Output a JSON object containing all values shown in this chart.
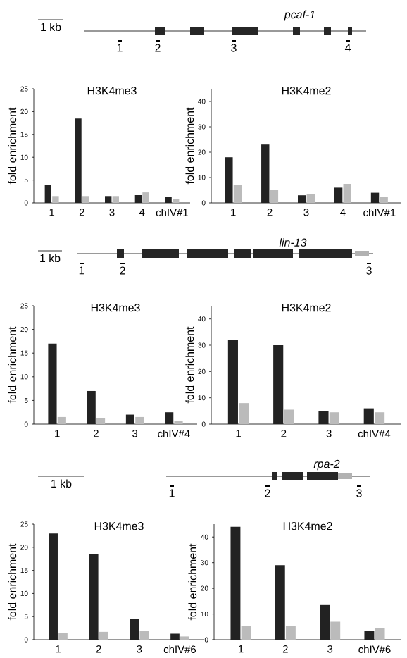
{
  "chart_data": [
    {
      "type": "other",
      "annotations": [
        "1 kb",
        "pcaf-1",
        "1",
        "2",
        "3",
        "4"
      ]
    },
    {
      "type": "bar",
      "title": "H3K4me3",
      "ylabel": "fold enrichment",
      "categories": [
        "1",
        "2",
        "3",
        "4",
        "chIV#1"
      ],
      "ylim": [
        0,
        25
      ],
      "yticks": [
        0,
        5,
        10,
        15,
        20,
        25
      ],
      "series": [
        {
          "color": "#222222",
          "values": [
            4,
            18.5,
            1.5,
            1.7,
            1.3
          ]
        },
        {
          "color": "#bbbbbb",
          "values": [
            1.5,
            1.5,
            1.5,
            2.3,
            0.8
          ]
        }
      ]
    },
    {
      "type": "bar",
      "title": "H3K4me2",
      "ylabel": "fold enrichment",
      "categories": [
        "1",
        "2",
        "3",
        "4",
        "chIV#1"
      ],
      "ylim": [
        0,
        45
      ],
      "yticks": [
        0,
        10,
        20,
        30,
        40
      ],
      "series": [
        {
          "color": "#222222",
          "values": [
            18,
            23,
            3,
            6,
            4
          ]
        },
        {
          "color": "#bbbbbb",
          "values": [
            7,
            5,
            3.5,
            7.5,
            2.5
          ]
        }
      ]
    },
    {
      "type": "other",
      "annotations": [
        "1 kb",
        "lin-13",
        "1",
        "2",
        "3"
      ]
    },
    {
      "type": "bar",
      "title": "H3K4me3",
      "ylabel": "fold enrichment",
      "categories": [
        "1",
        "2",
        "3",
        "chIV#4"
      ],
      "ylim": [
        0,
        25
      ],
      "yticks": [
        0,
        5,
        10,
        15,
        20,
        25
      ],
      "series": [
        {
          "color": "#222222",
          "values": [
            17,
            7,
            2,
            2.5
          ]
        },
        {
          "color": "#bbbbbb",
          "values": [
            1.5,
            1.2,
            1.5,
            0.7
          ]
        }
      ]
    },
    {
      "type": "bar",
      "title": "H3K4me2",
      "ylabel": "fold enrichment",
      "categories": [
        "1",
        "2",
        "3",
        "chIV#4"
      ],
      "ylim": [
        0,
        45
      ],
      "yticks": [
        0,
        10,
        20,
        30,
        40
      ],
      "series": [
        {
          "color": "#222222",
          "values": [
            32,
            30,
            5,
            6
          ]
        },
        {
          "color": "#bbbbbb",
          "values": [
            8,
            5.5,
            4.5,
            4.5
          ]
        }
      ]
    },
    {
      "type": "other",
      "annotations": [
        "1 kb",
        "rpa-2",
        "1",
        "2",
        "3"
      ]
    },
    {
      "type": "bar",
      "title": "H3K4me3",
      "ylabel": "fold enrichment",
      "categories": [
        "1",
        "2",
        "3",
        "chIV#6"
      ],
      "ylim": [
        0,
        25
      ],
      "yticks": [
        0,
        5,
        10,
        15,
        20,
        25
      ],
      "series": [
        {
          "color": "#222222",
          "values": [
            23,
            18.5,
            4.5,
            1.3
          ]
        },
        {
          "color": "#bbbbbb",
          "values": [
            1.5,
            1.7,
            1.9,
            0.7
          ]
        }
      ]
    },
    {
      "type": "bar",
      "title": "H3K4me2",
      "ylabel": "fold enrichment",
      "categories": [
        "1",
        "2",
        "3",
        "chIV#6"
      ],
      "ylim": [
        0,
        45
      ],
      "yticks": [
        0,
        10,
        20,
        30,
        40
      ],
      "series": [
        {
          "color": "#222222",
          "values": [
            44,
            29,
            13.5,
            3.5
          ]
        },
        {
          "color": "#bbbbbb",
          "values": [
            5.5,
            5.5,
            7,
            4.5
          ]
        }
      ]
    }
  ]
}
